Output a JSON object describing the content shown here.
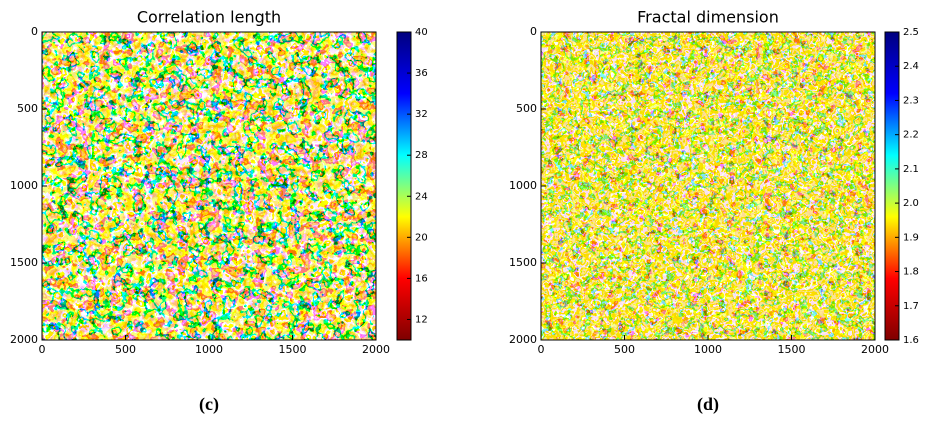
{
  "chart_data": [
    {
      "type": "heatmap",
      "title": "Correlation length",
      "caption": "(c)",
      "xlim": [
        0,
        2000
      ],
      "xticks": [
        0,
        500,
        1000,
        1500,
        2000
      ],
      "ylim": [
        2000,
        0
      ],
      "yticks": [
        0,
        500,
        1000,
        1500,
        2000
      ],
      "clim": [
        10,
        40
      ],
      "cticks": [
        12,
        16,
        20,
        24,
        28,
        32,
        36,
        40
      ],
      "colormap": [
        "#7f0000",
        "#ff0000",
        "#ffff00",
        "#00ffff",
        "#0000ff",
        "#00007f"
      ]
    },
    {
      "type": "heatmap",
      "title": "Fractal dimension",
      "caption": "(d)",
      "xlim": [
        0,
        2000
      ],
      "xticks": [
        0,
        500,
        1000,
        1500,
        2000
      ],
      "ylim": [
        2000,
        0
      ],
      "yticks": [
        0,
        500,
        1000,
        1500,
        2000
      ],
      "clim": [
        1.6,
        2.5
      ],
      "cticks": [
        {
          "value": 1.6,
          "label": "1.6"
        },
        {
          "value": 1.7,
          "label": "1.7"
        },
        {
          "value": 1.8,
          "label": "1.8"
        },
        {
          "value": 1.9,
          "label": "1.9"
        },
        {
          "value": 2.0,
          "label": "2.0"
        },
        {
          "value": 2.1,
          "label": "2.1"
        },
        {
          "value": 2.2,
          "label": "2.2"
        },
        {
          "value": 2.3,
          "label": "2.3"
        },
        {
          "value": 2.4,
          "label": "2.4"
        },
        {
          "value": 2.5,
          "label": "2.5"
        }
      ],
      "colormap": [
        "#7f0000",
        "#ff0000",
        "#ffff00",
        "#00ffff",
        "#0000ff",
        "#00007f"
      ]
    }
  ]
}
